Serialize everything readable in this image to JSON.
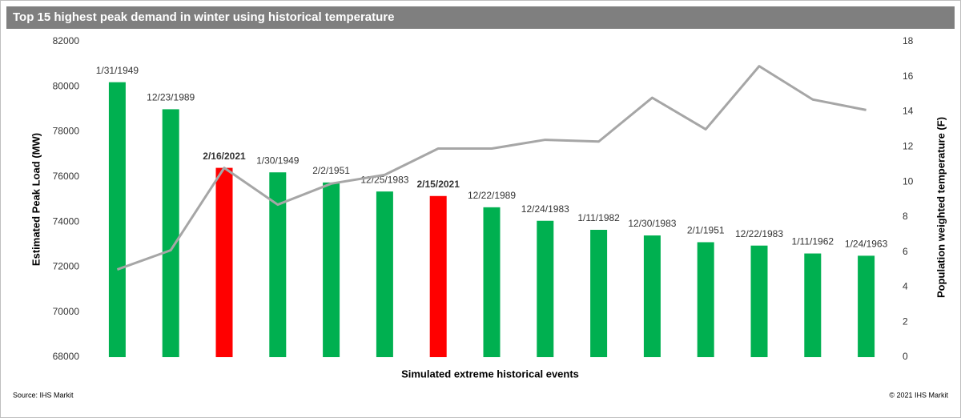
{
  "chart_data": {
    "type": "bar-line",
    "title": "Top 15 highest peak demand in winter using historical temperature",
    "x_label": "Simulated extreme historical events",
    "y_label": "Estimated Peak Load (MW)",
    "y2_label": "Population weighted temperature (F)",
    "source": "Source:  IHS Markit",
    "copyright": "© 2021  IHS Markit",
    "categories": [
      "1/31/1949",
      "12/23/1989",
      "2/16/2021",
      "1/30/1949",
      "2/2/1951",
      "12/25/1983",
      "2/15/2021",
      "12/22/1989",
      "12/24/1983",
      "1/11/1982",
      "12/30/1983",
      "2/1/1951",
      "12/22/1983",
      "1/11/1962",
      "1/24/1963"
    ],
    "series": [
      {
        "type": "bar",
        "color": "#00b050",
        "colors": [
          "#00b050",
          "#00b050",
          "#ff0000",
          "#00b050",
          "#00b050",
          "#00b050",
          "#ff0000",
          "#00b050",
          "#00b050",
          "#00b050",
          "#00b050",
          "#00b050",
          "#00b050",
          "#00b050",
          "#00b050"
        ],
        "values": [
          80200,
          79000,
          76400,
          76200,
          75750,
          75350,
          75150,
          74650,
          74050,
          73650,
          73400,
          73100,
          72950,
          72600,
          72500
        ]
      },
      {
        "type": "line",
        "axis": "y2",
        "color": "#a6a6a6",
        "values": [
          5.0,
          6.1,
          10.8,
          8.7,
          9.9,
          10.4,
          11.9,
          11.9,
          12.4,
          12.3,
          14.8,
          13.0,
          16.6,
          14.7,
          14.1
        ]
      }
    ],
    "ylim": [
      68000,
      82000
    ],
    "yticks": [
      68000,
      70000,
      72000,
      74000,
      76000,
      78000,
      80000,
      82000
    ],
    "y2lim": [
      0,
      18
    ],
    "y2ticks": [
      0,
      2,
      4,
      6,
      8,
      10,
      12,
      14,
      16,
      18
    ],
    "grid": false
  }
}
